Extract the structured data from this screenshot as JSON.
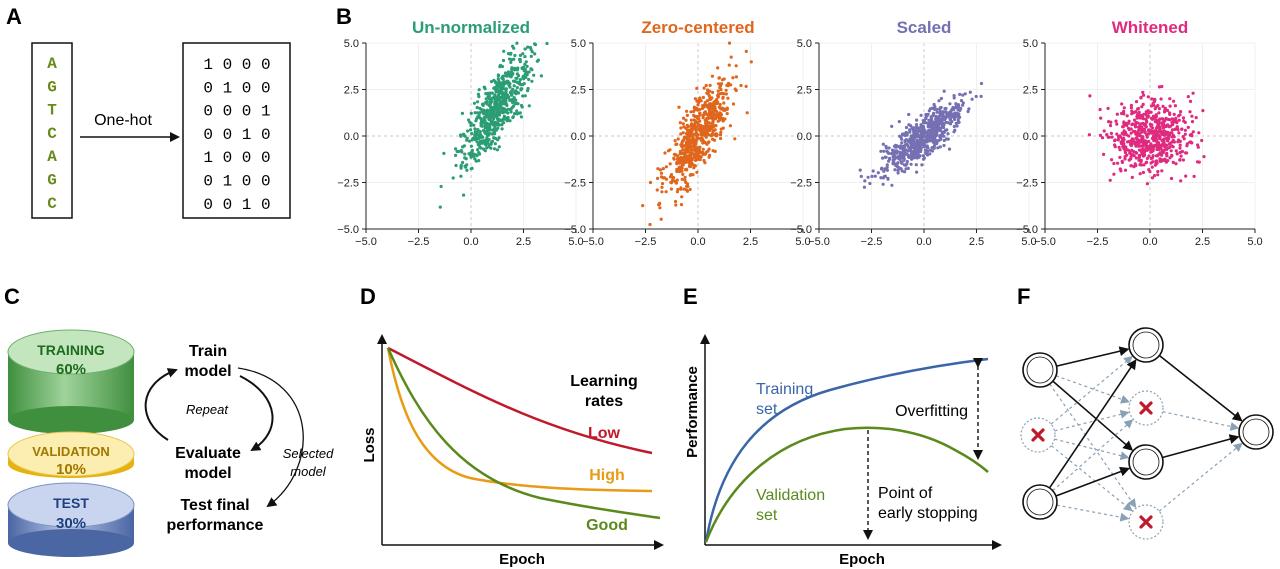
{
  "panels": {
    "a": {
      "letter": "A",
      "sequence": [
        "A",
        "G",
        "T",
        "C",
        "A",
        "G",
        "C"
      ],
      "arrow_label": "One-hot",
      "matrix": [
        "1 0 0 0",
        "0 1 0 0",
        "0 0 0 1",
        "0 0 1 0",
        "1 0 0 0",
        "0 1 0 0",
        "0 0 1 0"
      ],
      "seq_color": "#6a8a1c"
    },
    "b": {
      "letter": "B"
    },
    "c": {
      "letter": "C",
      "training": {
        "name": "TRAINING",
        "pct": "60%"
      },
      "validation": {
        "name": "VALIDATION",
        "pct": "10%"
      },
      "test": {
        "name": "TEST",
        "pct": "30%"
      },
      "train_model": [
        "Train",
        "model"
      ],
      "repeat": "Repeat",
      "evaluate_model": [
        "Evaluate",
        "model"
      ],
      "selected_model": [
        "Selected",
        "model"
      ],
      "test_final": [
        "Test final",
        "performance"
      ],
      "colors": {
        "training": "#4aa24a",
        "validation": "#f2c21a",
        "test": "#5877b4",
        "training_text": "#1d6b1d",
        "validation_text": "#a07800",
        "test_text": "#1d3f80"
      }
    },
    "d": {
      "letter": "D",
      "xlabel": "Epoch",
      "ylabel": "Loss",
      "legend_title": [
        "Learning",
        "rates"
      ],
      "curves": [
        {
          "name": "Low",
          "color": "#c0192b"
        },
        {
          "name": "High",
          "color": "#e89b14"
        },
        {
          "name": "Good",
          "color": "#5a8a1c"
        }
      ]
    },
    "e": {
      "letter": "E",
      "xlabel": "Epoch",
      "ylabel": "Performance",
      "training_label": [
        "Training",
        "set"
      ],
      "validation_label": [
        "Validation",
        "set"
      ],
      "overfitting": "Overfitting",
      "early_stop": [
        "Point of",
        "early stopping"
      ],
      "colors": {
        "training": "#3a66a8",
        "validation": "#5a8a1c"
      }
    },
    "f": {
      "letter": "F",
      "dropout_color": "#c0192b"
    }
  },
  "chart_data": [
    {
      "type": "scatter",
      "title": "Un-normalized",
      "color": "#2a9d74",
      "center": [
        1.2,
        1.5
      ],
      "spread": {
        "major": 1.7,
        "minor": 0.45,
        "angle_deg": 65
      },
      "n_points": 600,
      "xlim": [
        -5,
        5
      ],
      "ylim": [
        -5,
        5
      ],
      "xticks": [
        "−5.0",
        "−2.5",
        "0.0",
        "2.5",
        "5.0"
      ],
      "yticks": [
        "5.0",
        "2.5",
        "0.0",
        "−2.5",
        "−5.0"
      ]
    },
    {
      "type": "scatter",
      "title": "Zero-centered",
      "color": "#e0661d",
      "center": [
        0,
        0
      ],
      "spread": {
        "major": 1.7,
        "minor": 0.45,
        "angle_deg": 65
      },
      "n_points": 600,
      "xlim": [
        -5,
        5
      ],
      "ylim": [
        -5,
        5
      ],
      "xticks": [
        "−5.0",
        "−2.5",
        "0.0",
        "2.5",
        "5.0"
      ],
      "yticks": [
        "5.0",
        "2.5",
        "0.0",
        "−2.5",
        "−5.0"
      ]
    },
    {
      "type": "scatter",
      "title": "Scaled",
      "color": "#7470b2",
      "center": [
        0,
        0
      ],
      "spread": {
        "major": 1.35,
        "minor": 0.42,
        "angle_deg": 45
      },
      "n_points": 600,
      "xlim": [
        -5,
        5
      ],
      "ylim": [
        -5,
        5
      ],
      "xticks": [
        "−5.0",
        "−2.5",
        "0.0",
        "2.5",
        "5.0"
      ],
      "yticks": [
        "5.0",
        "2.5",
        "0.0",
        "−2.5",
        "−5.0"
      ]
    },
    {
      "type": "scatter",
      "title": "Whitened",
      "color": "#df2a7f",
      "center": [
        0,
        0
      ],
      "spread": {
        "major": 1.0,
        "minor": 1.0,
        "angle_deg": 0
      },
      "n_points": 600,
      "xlim": [
        -5,
        5
      ],
      "ylim": [
        -5,
        5
      ],
      "xticks": [
        "−5.0",
        "−2.5",
        "0.0",
        "2.5",
        "5.0"
      ],
      "yticks": [
        "5.0",
        "2.5",
        "0.0",
        "−2.5",
        "−5.0"
      ]
    }
  ]
}
